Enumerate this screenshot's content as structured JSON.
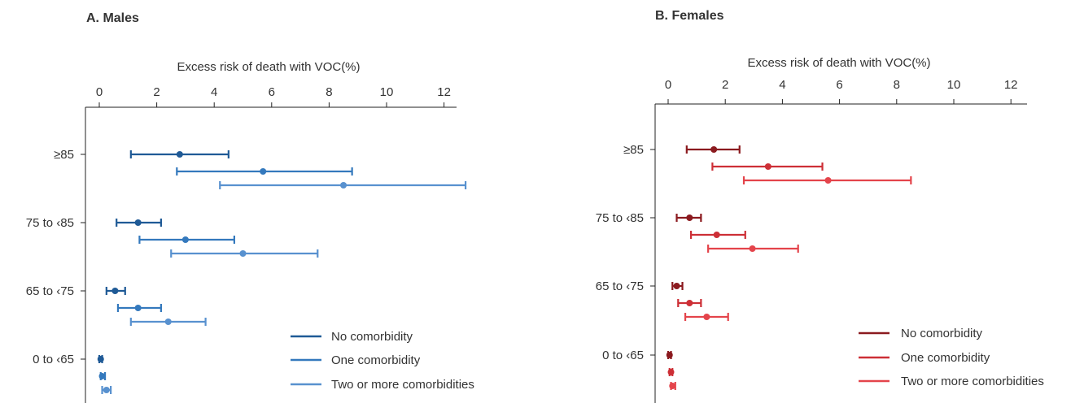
{
  "chart_data": [
    {
      "type": "forest",
      "panel_label": "A. Males",
      "title": "",
      "xlabel": "Excess risk of death with VOC(%)",
      "xlim": [
        0,
        12.6
      ],
      "xticks": [
        0,
        2,
        4,
        6,
        8,
        10,
        12
      ],
      "categories": [
        "≥85",
        "75 to ‹85",
        "65 to ‹75",
        "0 to ‹65"
      ],
      "legend_position": "bottom-right",
      "series": [
        {
          "name": "No comorbidity",
          "color": "#1f5a96",
          "points": [
            {
              "category": "≥85",
              "estimate": 2.8,
              "lower": 1.1,
              "upper": 4.5
            },
            {
              "category": "75 to ‹85",
              "estimate": 1.35,
              "lower": 0.6,
              "upper": 2.15
            },
            {
              "category": "65 to ‹75",
              "estimate": 0.55,
              "lower": 0.25,
              "upper": 0.9
            },
            {
              "category": "0 to ‹65",
              "estimate": 0.05,
              "lower": 0.0,
              "upper": 0.1
            }
          ]
        },
        {
          "name": "One comorbidity",
          "color": "#3479bd",
          "points": [
            {
              "category": "≥85",
              "estimate": 5.7,
              "lower": 2.7,
              "upper": 8.8
            },
            {
              "category": "75 to ‹85",
              "estimate": 3.0,
              "lower": 1.4,
              "upper": 4.7
            },
            {
              "category": "65 to ‹75",
              "estimate": 1.35,
              "lower": 0.65,
              "upper": 2.15
            },
            {
              "category": "0 to ‹65",
              "estimate": 0.1,
              "lower": 0.05,
              "upper": 0.2
            }
          ]
        },
        {
          "name": "Two or more comorbidities",
          "color": "#5891cf",
          "points": [
            {
              "category": "≥85",
              "estimate": 8.5,
              "lower": 4.2,
              "upper": 12.75
            },
            {
              "category": "75 to ‹85",
              "estimate": 5.0,
              "lower": 2.5,
              "upper": 7.6
            },
            {
              "category": "65 to ‹75",
              "estimate": 2.4,
              "lower": 1.1,
              "upper": 3.7
            },
            {
              "category": "0 to ‹65",
              "estimate": 0.25,
              "lower": 0.1,
              "upper": 0.4
            }
          ]
        }
      ]
    },
    {
      "type": "forest",
      "panel_label": "B. Females",
      "title": "",
      "xlabel": "Excess risk of death with VOC(%)",
      "xlim": [
        0,
        12.6
      ],
      "xticks": [
        0,
        2,
        4,
        6,
        8,
        10,
        12
      ],
      "categories": [
        "≥85",
        "75 to ‹85",
        "65 to ‹75",
        "0 to ‹65"
      ],
      "legend_position": "bottom-right",
      "series": [
        {
          "name": "No comorbidity",
          "color": "#8b1a1f",
          "points": [
            {
              "category": "≥85",
              "estimate": 1.6,
              "lower": 0.65,
              "upper": 2.5
            },
            {
              "category": "75 to ‹85",
              "estimate": 0.75,
              "lower": 0.3,
              "upper": 1.15
            },
            {
              "category": "65 to ‹75",
              "estimate": 0.3,
              "lower": 0.15,
              "upper": 0.5
            },
            {
              "category": "0 to ‹65",
              "estimate": 0.05,
              "lower": 0.0,
              "upper": 0.1
            }
          ]
        },
        {
          "name": "One comorbidity",
          "color": "#cd2f36",
          "points": [
            {
              "category": "≥85",
              "estimate": 3.5,
              "lower": 1.55,
              "upper": 5.4
            },
            {
              "category": "75 to ‹85",
              "estimate": 1.7,
              "lower": 0.8,
              "upper": 2.7
            },
            {
              "category": "65 to ‹75",
              "estimate": 0.75,
              "lower": 0.35,
              "upper": 1.15
            },
            {
              "category": "0 to ‹65",
              "estimate": 0.1,
              "lower": 0.05,
              "upper": 0.15
            }
          ]
        },
        {
          "name": "Two or more comorbidities",
          "color": "#e4444b",
          "points": [
            {
              "category": "≥85",
              "estimate": 5.6,
              "lower": 2.65,
              "upper": 8.5
            },
            {
              "category": "75 to ‹85",
              "estimate": 2.95,
              "lower": 1.4,
              "upper": 4.55
            },
            {
              "category": "65 to ‹75",
              "estimate": 1.35,
              "lower": 0.6,
              "upper": 2.1
            },
            {
              "category": "0 to ‹65",
              "estimate": 0.15,
              "lower": 0.1,
              "upper": 0.25
            }
          ]
        }
      ]
    }
  ]
}
